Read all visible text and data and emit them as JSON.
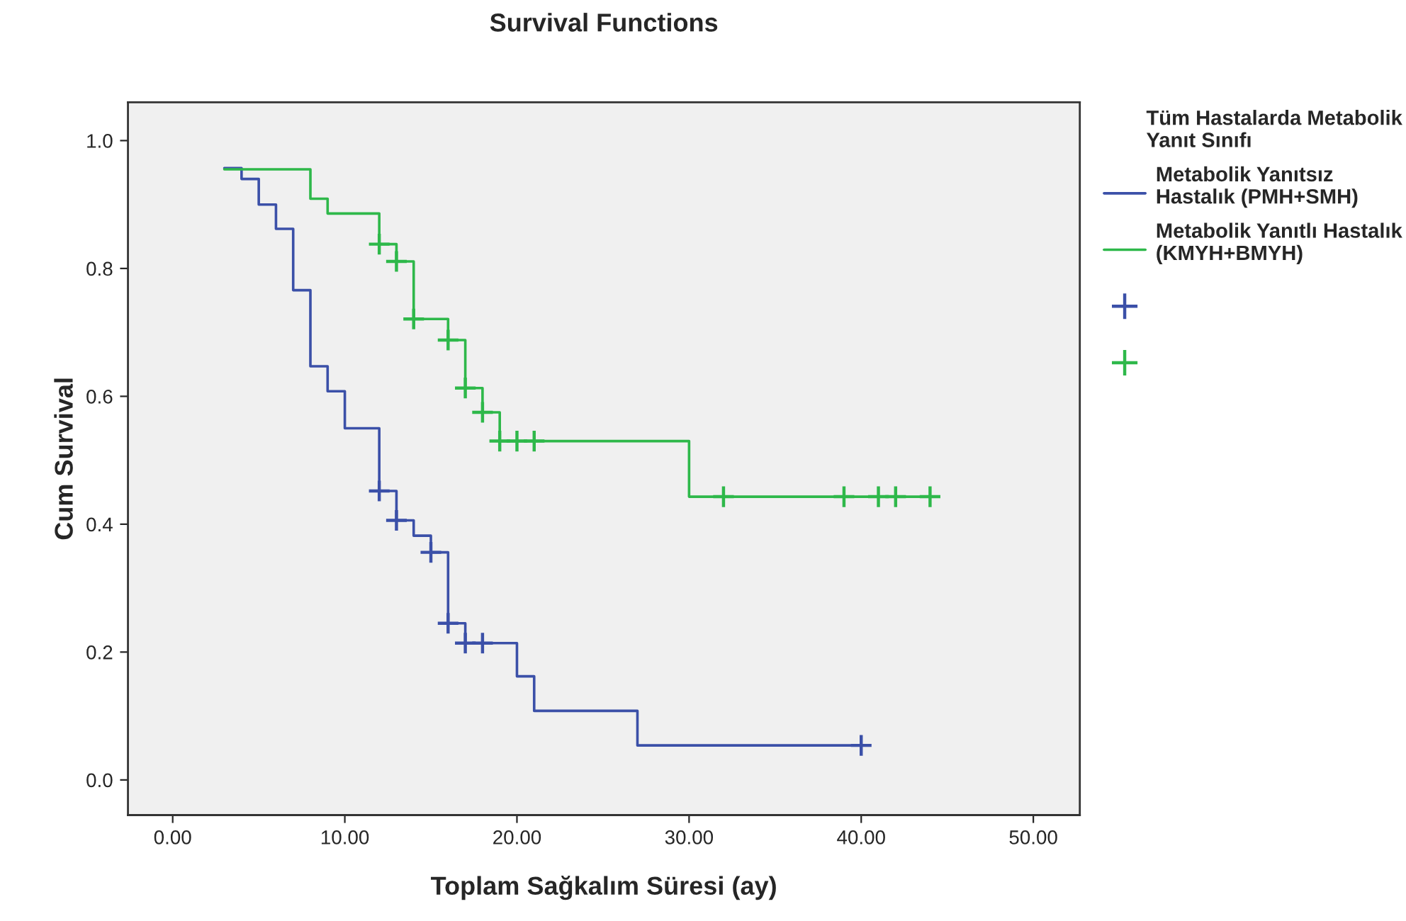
{
  "chart_data": {
    "type": "step",
    "title": "Survival Functions",
    "xlabel": "Toplam Sağkalım Süresi (ay)",
    "ylabel": "Cum Survival",
    "legend_title": "Tüm Hastalarda Metabolik Yanıt Sınıfı",
    "series": [
      {
        "type": "step",
        "name": "Metabolik Yanıtsız Hastalık (PMH+SMH)",
        "color": "#3b50a8",
        "x": [
          3,
          4,
          5,
          6,
          7,
          8,
          9,
          10,
          12,
          13,
          14,
          15,
          16,
          17,
          20,
          21,
          27,
          40
        ],
        "values": [
          0.957,
          0.94,
          0.9,
          0.862,
          0.766,
          0.647,
          0.608,
          0.55,
          0.452,
          0.406,
          0.382,
          0.356,
          0.245,
          0.214,
          0.162,
          0.108,
          0.054,
          0.054
        ]
      },
      {
        "type": "step",
        "name": "Metabolik Yanıtlı Hastalık (KMYH+BMYH)",
        "color": "#2eb84a",
        "x": [
          3,
          8,
          9,
          12,
          13,
          14,
          16,
          17,
          18,
          19,
          30,
          44
        ],
        "values": [
          0.955,
          0.909,
          0.886,
          0.838,
          0.811,
          0.721,
          0.688,
          0.613,
          0.575,
          0.53,
          0.443,
          0.443
        ]
      },
      {
        "type": "scatter",
        "marker": "cross",
        "color": "#3b50a8",
        "x": [
          12,
          13,
          15,
          16,
          17,
          18,
          40
        ],
        "values": [
          0.452,
          0.406,
          0.356,
          0.245,
          0.214,
          0.214,
          0.054
        ]
      },
      {
        "type": "scatter",
        "marker": "cross",
        "color": "#2eb84a",
        "x": [
          12,
          13,
          14,
          16,
          17,
          18,
          19,
          20,
          21,
          32,
          39,
          41,
          42,
          44
        ],
        "values": [
          0.838,
          0.811,
          0.721,
          0.688,
          0.613,
          0.575,
          0.53,
          0.53,
          0.53,
          0.443,
          0.443,
          0.443,
          0.443,
          0.443
        ]
      }
    ],
    "xlim": [
      -2.6,
      52.7
    ],
    "ylim": [
      -0.055,
      1.06
    ],
    "xticks": [
      {
        "value": 0,
        "label": "0.00"
      },
      {
        "value": 10,
        "label": "10.00"
      },
      {
        "value": 20,
        "label": "20.00"
      },
      {
        "value": 30,
        "label": "30.00"
      },
      {
        "value": 40,
        "label": "40.00"
      },
      {
        "value": 50,
        "label": "50.00"
      }
    ],
    "yticks": [
      {
        "value": 0,
        "label": "0.0"
      },
      {
        "value": 0.2,
        "label": "0.2"
      },
      {
        "value": 0.4,
        "label": "0.4"
      },
      {
        "value": 0.6,
        "label": "0.6"
      },
      {
        "value": 0.8,
        "label": "0.8"
      },
      {
        "value": 1.0,
        "label": "1.0"
      }
    ],
    "grid": false,
    "legend": "right"
  }
}
